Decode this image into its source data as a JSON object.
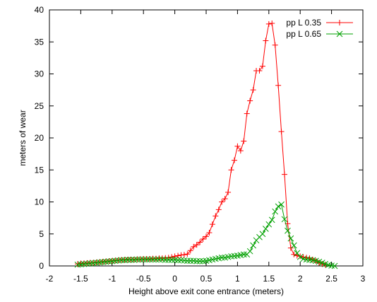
{
  "chart_data": {
    "type": "line",
    "xlabel": "Height above exit cone entrance (meters)",
    "ylabel": "meters of wear",
    "xlim": [
      -2,
      3
    ],
    "ylim": [
      0,
      40
    ],
    "xticks": [
      "-2",
      "-1.5",
      "-1",
      "-0.5",
      "0",
      "0.5",
      "1",
      "1.5",
      "2",
      "2.5",
      "3"
    ],
    "yticks": [
      "0",
      "5",
      "10",
      "15",
      "20",
      "25",
      "30",
      "35",
      "40"
    ],
    "grid": false,
    "legend_position": "top-right",
    "series": [
      {
        "name": "pp L 0.35",
        "color": "#ff0000",
        "marker": "plus",
        "points": [
          [
            -1.55,
            0.3
          ],
          [
            -1.5,
            0.4
          ],
          [
            -1.45,
            0.4
          ],
          [
            -1.4,
            0.45
          ],
          [
            -1.35,
            0.5
          ],
          [
            -1.3,
            0.5
          ],
          [
            -1.25,
            0.55
          ],
          [
            -1.2,
            0.6
          ],
          [
            -1.15,
            0.65
          ],
          [
            -1.1,
            0.7
          ],
          [
            -1.05,
            0.75
          ],
          [
            -1.0,
            0.8
          ],
          [
            -0.95,
            0.85
          ],
          [
            -0.9,
            0.9
          ],
          [
            -0.85,
            0.95
          ],
          [
            -0.8,
            0.95
          ],
          [
            -0.75,
            1.0
          ],
          [
            -0.7,
            1.0
          ],
          [
            -0.65,
            1.0
          ],
          [
            -0.6,
            1.05
          ],
          [
            -0.55,
            1.05
          ],
          [
            -0.5,
            1.1
          ],
          [
            -0.45,
            1.1
          ],
          [
            -0.4,
            1.1
          ],
          [
            -0.35,
            1.15
          ],
          [
            -0.3,
            1.15
          ],
          [
            -0.25,
            1.2
          ],
          [
            -0.2,
            1.2
          ],
          [
            -0.15,
            1.25
          ],
          [
            -0.1,
            1.3
          ],
          [
            -0.05,
            1.4
          ],
          [
            0.0,
            1.5
          ],
          [
            0.05,
            1.6
          ],
          [
            0.1,
            1.7
          ],
          [
            0.15,
            1.75
          ],
          [
            0.2,
            1.85
          ],
          [
            0.25,
            2.4
          ],
          [
            0.3,
            3.0
          ],
          [
            0.35,
            3.3
          ],
          [
            0.4,
            3.7
          ],
          [
            0.45,
            4.2
          ],
          [
            0.5,
            4.6
          ],
          [
            0.55,
            5.2
          ],
          [
            0.6,
            6.5
          ],
          [
            0.65,
            7.8
          ],
          [
            0.7,
            8.8
          ],
          [
            0.75,
            10.0
          ],
          [
            0.8,
            10.5
          ],
          [
            0.85,
            11.5
          ],
          [
            0.9,
            15.0
          ],
          [
            0.95,
            16.5
          ],
          [
            1.0,
            18.7
          ],
          [
            1.05,
            18.0
          ],
          [
            1.1,
            19.5
          ],
          [
            1.15,
            23.8
          ],
          [
            1.2,
            25.8
          ],
          [
            1.25,
            27.5
          ],
          [
            1.3,
            30.5
          ],
          [
            1.35,
            30.5
          ],
          [
            1.4,
            31.2
          ],
          [
            1.45,
            35.2
          ],
          [
            1.5,
            37.8
          ],
          [
            1.55,
            37.9
          ],
          [
            1.6,
            34.5
          ],
          [
            1.65,
            28.2
          ],
          [
            1.7,
            21.0
          ],
          [
            1.75,
            14.3
          ],
          [
            1.8,
            6.6
          ],
          [
            1.85,
            2.8
          ],
          [
            1.9,
            1.8
          ],
          [
            1.95,
            1.6
          ],
          [
            2.0,
            1.5
          ],
          [
            2.05,
            1.4
          ],
          [
            2.1,
            1.3
          ],
          [
            2.15,
            1.2
          ],
          [
            2.2,
            1.0
          ],
          [
            2.25,
            0.8
          ],
          [
            2.3,
            0.5
          ],
          [
            2.35,
            0.3
          ],
          [
            2.4,
            0.2
          ]
        ]
      },
      {
        "name": "pp L 0.65",
        "color": "#00a000",
        "marker": "x",
        "points": [
          [
            -1.55,
            0.2
          ],
          [
            -1.5,
            0.25
          ],
          [
            -1.45,
            0.3
          ],
          [
            -1.4,
            0.35
          ],
          [
            -1.35,
            0.4
          ],
          [
            -1.3,
            0.45
          ],
          [
            -1.25,
            0.5
          ],
          [
            -1.2,
            0.55
          ],
          [
            -1.15,
            0.6
          ],
          [
            -1.1,
            0.65
          ],
          [
            -1.05,
            0.7
          ],
          [
            -1.0,
            0.75
          ],
          [
            -0.95,
            0.8
          ],
          [
            -0.9,
            0.85
          ],
          [
            -0.85,
            0.9
          ],
          [
            -0.8,
            0.9
          ],
          [
            -0.75,
            0.95
          ],
          [
            -0.7,
            0.95
          ],
          [
            -0.65,
            0.95
          ],
          [
            -0.6,
            1.0
          ],
          [
            -0.55,
            1.0
          ],
          [
            -0.5,
            1.0
          ],
          [
            -0.45,
            1.0
          ],
          [
            -0.4,
            1.0
          ],
          [
            -0.35,
            1.0
          ],
          [
            -0.3,
            1.0
          ],
          [
            -0.25,
            1.0
          ],
          [
            -0.2,
            1.0
          ],
          [
            -0.15,
            0.95
          ],
          [
            -0.1,
            0.95
          ],
          [
            -0.05,
            0.95
          ],
          [
            0.0,
            0.95
          ],
          [
            0.05,
            0.9
          ],
          [
            0.1,
            0.9
          ],
          [
            0.15,
            0.85
          ],
          [
            0.2,
            0.8
          ],
          [
            0.25,
            0.8
          ],
          [
            0.3,
            0.8
          ],
          [
            0.35,
            0.75
          ],
          [
            0.4,
            0.75
          ],
          [
            0.45,
            0.75
          ],
          [
            0.5,
            0.8
          ],
          [
            0.55,
            0.9
          ],
          [
            0.6,
            1.0
          ],
          [
            0.65,
            1.1
          ],
          [
            0.7,
            1.2
          ],
          [
            0.75,
            1.3
          ],
          [
            0.8,
            1.3
          ],
          [
            0.85,
            1.4
          ],
          [
            0.9,
            1.5
          ],
          [
            0.95,
            1.55
          ],
          [
            1.0,
            1.6
          ],
          [
            1.05,
            1.7
          ],
          [
            1.1,
            1.8
          ],
          [
            1.15,
            1.8
          ],
          [
            1.2,
            2.3
          ],
          [
            1.25,
            3.2
          ],
          [
            1.3,
            4.0
          ],
          [
            1.35,
            4.5
          ],
          [
            1.4,
            5.0
          ],
          [
            1.45,
            5.8
          ],
          [
            1.5,
            6.5
          ],
          [
            1.55,
            7.2
          ],
          [
            1.6,
            8.5
          ],
          [
            1.65,
            9.3
          ],
          [
            1.7,
            9.6
          ],
          [
            1.75,
            7.3
          ],
          [
            1.8,
            5.5
          ],
          [
            1.85,
            4.3
          ],
          [
            1.9,
            3.2
          ],
          [
            1.95,
            2.0
          ],
          [
            2.0,
            1.4
          ],
          [
            2.05,
            1.1
          ],
          [
            2.1,
            1.0
          ],
          [
            2.15,
            0.95
          ],
          [
            2.2,
            0.9
          ],
          [
            2.25,
            0.8
          ],
          [
            2.3,
            0.65
          ],
          [
            2.35,
            0.5
          ],
          [
            2.4,
            0.3
          ],
          [
            2.45,
            0.15
          ],
          [
            2.5,
            0.05
          ],
          [
            2.55,
            0.0
          ]
        ]
      }
    ]
  }
}
